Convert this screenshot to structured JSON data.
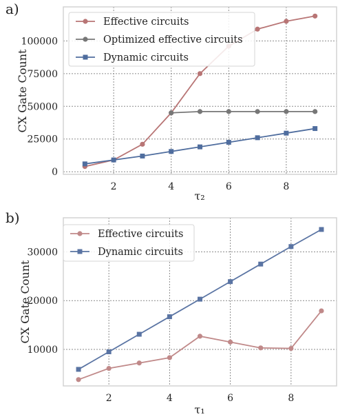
{
  "chart_data": [
    {
      "panel_label": "a)",
      "type": "line",
      "xlabel": "τ₂",
      "ylabel": "CX Gate Count",
      "xlim": [
        0.25,
        9.75
      ],
      "ylim": [
        -2000,
        126000
      ],
      "xticks": [
        2,
        4,
        6,
        8
      ],
      "yticks": [
        0,
        25000,
        50000,
        75000,
        100000
      ],
      "ytick_labels": [
        "0",
        "25000",
        "50000",
        "75000",
        "100000"
      ],
      "grid": true,
      "legend_position": "top-left",
      "x": [
        1,
        2,
        3,
        4,
        5,
        6,
        7,
        8,
        9
      ],
      "series": [
        {
          "name": "Effective circuits",
          "color": "#b87575",
          "marker": "circle",
          "values": [
            4000,
            9000,
            21000,
            45000,
            75000,
            96000,
            109000,
            115000,
            119000
          ]
        },
        {
          "name": "Optimized effective circuits",
          "color": "#777777",
          "marker": "circle",
          "x": [
            4,
            5,
            6,
            7,
            8,
            9
          ],
          "values": [
            45000,
            46000,
            46000,
            46000,
            46000,
            46000
          ]
        },
        {
          "name": "Dynamic circuits",
          "color": "#4f6d9e",
          "marker": "square",
          "values": [
            6000,
            9000,
            12000,
            15500,
            19000,
            22500,
            26000,
            29500,
            33000
          ]
        }
      ]
    },
    {
      "panel_label": "b)",
      "type": "line",
      "xlabel": "τ₁",
      "ylabel": "CX Gate Count",
      "xlim": [
        0.5,
        9.5
      ],
      "ylim": [
        2500,
        37000
      ],
      "xticks": [
        2,
        4,
        6,
        8
      ],
      "yticks": [
        10000,
        20000,
        30000
      ],
      "ytick_labels": [
        "10000",
        "20000",
        "30000"
      ],
      "grid": true,
      "legend_position": "top-left",
      "x": [
        1,
        2,
        3,
        4,
        5,
        6,
        7,
        8,
        9
      ],
      "series": [
        {
          "name": "Effective circuits",
          "color": "#c08989",
          "marker": "circle",
          "values": [
            3800,
            6100,
            7200,
            8300,
            12700,
            11500,
            10300,
            10200,
            17900
          ]
        },
        {
          "name": "Dynamic circuits",
          "color": "#5a74a3",
          "marker": "square",
          "values": [
            5900,
            9500,
            13100,
            16700,
            20300,
            23900,
            27500,
            31100,
            34600
          ]
        }
      ]
    }
  ]
}
